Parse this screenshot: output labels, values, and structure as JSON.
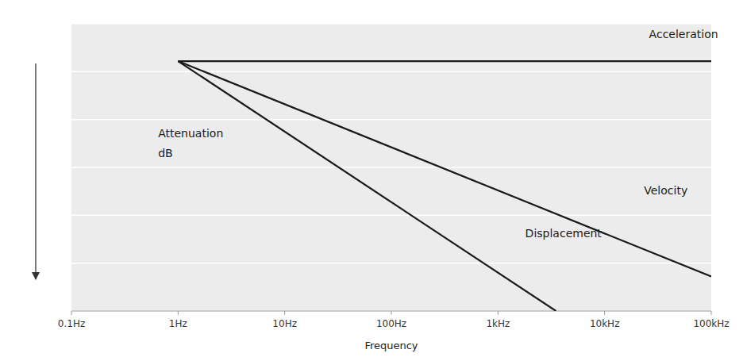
{
  "chart_data": {
    "type": "line",
    "xlabel": "Frequency",
    "log": "x",
    "xlim": [
      0.1,
      100000
    ],
    "ylim": [
      0,
      1
    ],
    "xticks": [
      {
        "value": 0.1,
        "label": "0.1Hz"
      },
      {
        "value": 1,
        "label": "1Hz"
      },
      {
        "value": 10,
        "label": "10Hz"
      },
      {
        "value": 100,
        "label": "100Hz"
      },
      {
        "value": 1000,
        "label": "1kHz"
      },
      {
        "value": 10000,
        "label": "10kHz"
      },
      {
        "value": 100000,
        "label": "100kHz"
      }
    ],
    "yticks": [
      0,
      0.16666666666666666,
      0.3333333333333333,
      0.5,
      0.6666666666666666,
      0.8333333333333333,
      1
    ],
    "tick_labels": "x",
    "grid": true,
    "series": [
      {
        "color": "#1a1a1a",
        "x": [
          1,
          100000
        ],
        "values": [
          0.87,
          0.87
        ]
      },
      {
        "color": "#1a1a1a",
        "x": [
          1,
          100000
        ],
        "values": [
          0.87,
          0.12
        ]
      },
      {
        "color": "#1a1a1a",
        "x": [
          1,
          3500
        ],
        "values": [
          0.87,
          0.0
        ]
      }
    ],
    "annotations": [
      {
        "text": "Acceleration",
        "x": 55000,
        "y": 0.935
      },
      {
        "text": "Velocity",
        "x": 60000,
        "y": 0.42
      },
      {
        "text": "Displacement",
        "x": 1800,
        "y": 0.24
      },
      {
        "text": "Attenuation",
        "x": 0.65,
        "y": 0.62
      },
      {
        "text": "dB",
        "x": 0.65,
        "y": 0.55
      }
    ]
  }
}
